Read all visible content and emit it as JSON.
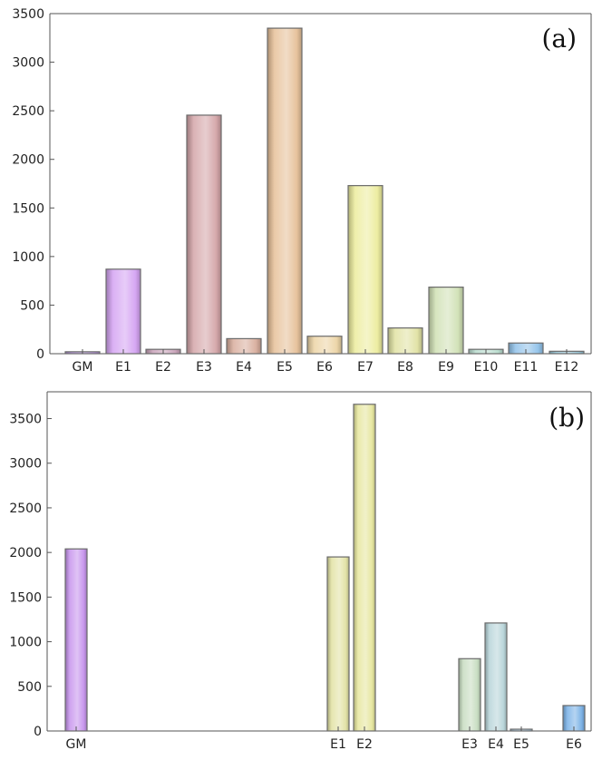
{
  "chart_data": [
    {
      "type": "bar",
      "panel_label": "(a)",
      "ylim": [
        0,
        3500
      ],
      "yticks": [
        0,
        500,
        1000,
        1500,
        2000,
        2500,
        3000,
        3500
      ],
      "categories": [
        "GM",
        "E1",
        "E2",
        "E3",
        "E4",
        "E5",
        "E6",
        "E7",
        "E8",
        "E9",
        "E10",
        "E11",
        "E12"
      ],
      "values": [
        20,
        870,
        45,
        2455,
        155,
        3350,
        180,
        1730,
        265,
        685,
        45,
        110,
        25
      ],
      "colors": [
        "#b58ee0",
        "#d4a2f2",
        "#c8a1b8",
        "#d4a4a8",
        "#d8ad9c",
        "#e6c098",
        "#ecd4a4",
        "#ecec9c",
        "#e0e2a2",
        "#d0e0b4",
        "#b8dcce",
        "#90c2ea",
        "#92c2d4"
      ],
      "grid": false,
      "xlabel": "",
      "ylabel": ""
    },
    {
      "type": "bar",
      "panel_label": "(b)",
      "ylim": [
        0,
        3800
      ],
      "yticks": [
        0,
        500,
        1000,
        1500,
        2000,
        2500,
        3000,
        3500
      ],
      "categories": [
        "GM",
        "E1",
        "E2",
        "E3",
        "E4",
        "E5",
        "E6"
      ],
      "values": [
        2040,
        1950,
        3660,
        810,
        1210,
        20,
        285
      ],
      "colors": [
        "#c592ec",
        "#e2e2a2",
        "#e6e69c",
        "#c6dcc0",
        "#b6d4d8",
        "#a2c4dc",
        "#78b0e6"
      ],
      "grid": false,
      "xlabel": "",
      "ylabel": ""
    }
  ]
}
